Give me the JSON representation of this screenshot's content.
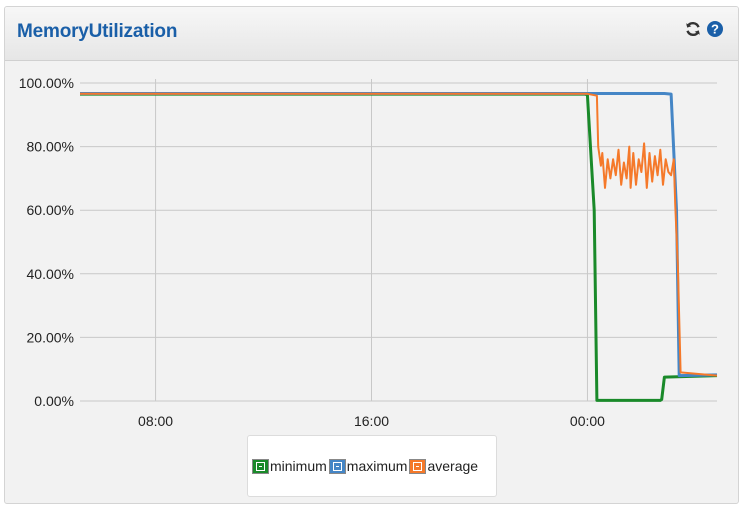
{
  "panel": {
    "title": "MemoryUtilization",
    "refresh_icon": "refresh-icon",
    "help_icon": "question-circle-icon",
    "accent_color": "#1a5fa8"
  },
  "chart_data": {
    "type": "line",
    "title": "MemoryUtilization",
    "xlabel": "",
    "ylabel": "",
    "y_ticks": [
      "100.00%",
      "80.00%",
      "60.00%",
      "40.00%",
      "20.00%",
      "0.00%"
    ],
    "ylim": [
      0,
      100
    ],
    "x_ticks": [
      "08:00",
      "16:00",
      "00:00"
    ],
    "x_tick_hours": [
      8,
      16,
      24
    ],
    "xlim_hours": [
      5.2,
      28.8
    ],
    "grid": true,
    "legend_position": "bottom-center",
    "series": [
      {
        "name": "minimum",
        "color": "#1a8a2a",
        "points": [
          [
            5.2,
            96.5
          ],
          [
            23.9,
            96.5
          ],
          [
            24.0,
            96.3
          ],
          [
            24.25,
            60
          ],
          [
            24.35,
            0.2
          ],
          [
            26.7,
            0.2
          ],
          [
            26.75,
            0.5
          ],
          [
            26.85,
            7.5
          ],
          [
            28.8,
            8
          ]
        ]
      },
      {
        "name": "maximum",
        "color": "#4586c6",
        "points": [
          [
            5.2,
            96.7
          ],
          [
            24.0,
            96.7
          ],
          [
            26.85,
            96.7
          ],
          [
            27.1,
            96.5
          ],
          [
            27.3,
            60
          ],
          [
            27.4,
            8.0
          ],
          [
            28.8,
            8.2
          ]
        ]
      },
      {
        "name": "average",
        "color": "#f5792a",
        "points": [
          [
            5.2,
            96.6
          ],
          [
            24.0,
            96.6
          ],
          [
            24.35,
            96.0
          ],
          [
            24.4,
            80
          ],
          [
            24.5,
            74
          ],
          [
            24.55,
            78
          ],
          [
            24.65,
            67
          ],
          [
            24.75,
            76
          ],
          [
            24.85,
            70
          ],
          [
            24.95,
            76
          ],
          [
            25.05,
            71
          ],
          [
            25.15,
            79
          ],
          [
            25.25,
            68
          ],
          [
            25.35,
            75
          ],
          [
            25.45,
            70
          ],
          [
            25.55,
            80
          ],
          [
            25.6,
            67
          ],
          [
            25.7,
            78
          ],
          [
            25.8,
            68
          ],
          [
            25.9,
            76
          ],
          [
            26.0,
            72
          ],
          [
            26.1,
            81
          ],
          [
            26.2,
            67
          ],
          [
            26.3,
            78
          ],
          [
            26.4,
            69
          ],
          [
            26.5,
            77
          ],
          [
            26.6,
            71
          ],
          [
            26.7,
            79
          ],
          [
            26.8,
            68
          ],
          [
            26.9,
            76
          ],
          [
            27.0,
            72
          ],
          [
            27.1,
            71
          ],
          [
            27.2,
            76
          ],
          [
            27.25,
            62
          ],
          [
            27.35,
            42
          ],
          [
            27.45,
            9
          ],
          [
            28.8,
            8
          ]
        ]
      }
    ]
  }
}
